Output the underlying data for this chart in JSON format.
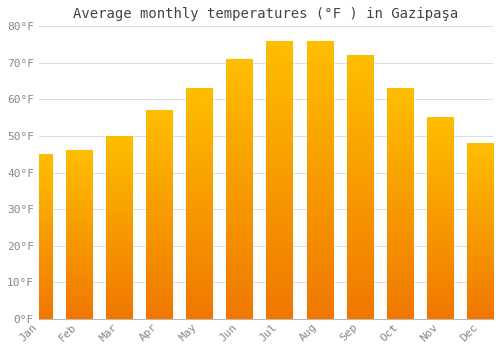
{
  "title": "Average monthly temperatures (°F ) in Gazipaşa",
  "months": [
    "Jan",
    "Feb",
    "Mar",
    "Apr",
    "May",
    "Jun",
    "Jul",
    "Aug",
    "Sep",
    "Oct",
    "Nov",
    "Dec"
  ],
  "values": [
    45,
    46,
    50,
    57,
    63,
    71,
    76,
    76,
    72,
    63,
    55,
    48
  ],
  "bar_color_top": "#FFBE00",
  "bar_color_bottom": "#F07800",
  "background_color": "#FFFFFF",
  "grid_color": "#DDDDDD",
  "ylim": [
    0,
    80
  ],
  "yticks": [
    0,
    10,
    20,
    30,
    40,
    50,
    60,
    70,
    80
  ],
  "ytick_labels": [
    "0°F",
    "10°F",
    "20°F",
    "30°F",
    "40°F",
    "50°F",
    "60°F",
    "70°F",
    "80°F"
  ],
  "title_fontsize": 10,
  "tick_fontsize": 8,
  "tick_color": "#888888",
  "title_color": "#444444",
  "font_family": "monospace",
  "bar_width": 0.65,
  "figsize": [
    5.0,
    3.5
  ],
  "dpi": 100
}
